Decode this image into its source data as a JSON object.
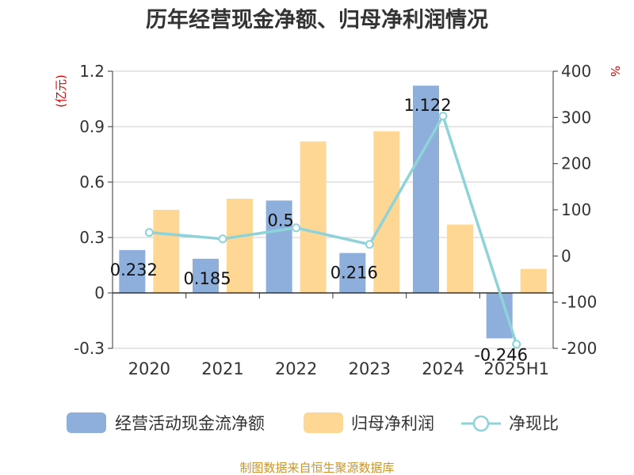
{
  "chart_data": {
    "type": "bar+line",
    "title": "历年经营现金净额、归母净利润情况",
    "categories": [
      "2020",
      "2021",
      "2022",
      "2023",
      "2024",
      "2025H1"
    ],
    "series": [
      {
        "name": "经营活动现金流净额",
        "axis": "left",
        "type": "bar",
        "color": "#8eaedb",
        "values": [
          0.232,
          0.185,
          0.5,
          0.216,
          1.122,
          -0.246
        ],
        "labels": [
          "0.232",
          "0.185",
          "0.5",
          "0.216",
          "1.122",
          "-0.246"
        ]
      },
      {
        "name": "归母净利润",
        "axis": "left",
        "type": "bar",
        "color": "#ffd794",
        "values": [
          0.45,
          0.51,
          0.82,
          0.875,
          0.37,
          0.13
        ]
      },
      {
        "name": "净现比",
        "axis": "right",
        "type": "line",
        "color": "#8ed3d9",
        "values": [
          51,
          37,
          61,
          25,
          303,
          -191
        ]
      }
    ],
    "left_axis": {
      "unit": "(亿元)",
      "ylim": [
        -0.3,
        1.2
      ],
      "ticks": [
        "-0.3",
        "0",
        "0.3",
        "0.6",
        "0.9",
        "1.2"
      ]
    },
    "right_axis": {
      "unit": "%",
      "ylim": [
        -200,
        400
      ],
      "ticks": [
        "-200",
        "-100",
        "0",
        "100",
        "200",
        "300",
        "400"
      ]
    },
    "grid": true,
    "legend": "bottom"
  },
  "source": "制图数据来自恒生聚源数据库"
}
